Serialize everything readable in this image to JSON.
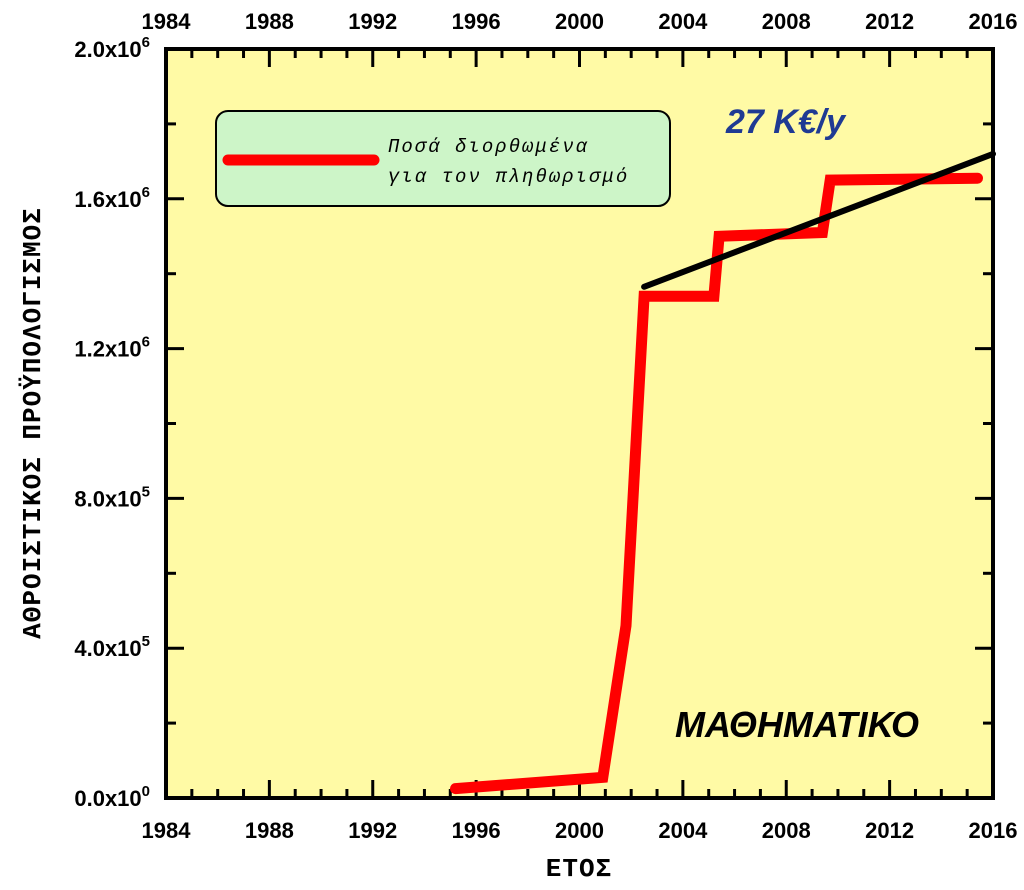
{
  "chart_data": {
    "type": "line",
    "xlabel": "ΕΤΟΣ",
    "ylabel": "ΑΘΡΟΙΣΤΙΚΟΣ ΠΡΟΫΠΟΛΟΓΙΣΜΟΣ",
    "xlim": [
      1984,
      2016
    ],
    "ylim": [
      0,
      2000000
    ],
    "x_ticks": [
      "1984",
      "1988",
      "1992",
      "1996",
      "2000",
      "2004",
      "2008",
      "2012",
      "2016"
    ],
    "y_ticks": [
      {
        "value": 0,
        "base": "0.0x10",
        "exp": "0"
      },
      {
        "value": 400000,
        "base": "4.0x10",
        "exp": "5"
      },
      {
        "value": 800000,
        "base": "8.0x10",
        "exp": "5"
      },
      {
        "value": 1200000,
        "base": "1.2x10",
        "exp": "6"
      },
      {
        "value": 1600000,
        "base": "1.6x10",
        "exp": "6"
      },
      {
        "value": 2000000,
        "base": "2.0x10",
        "exp": "6"
      }
    ],
    "grid": false,
    "background": "#fffaa5",
    "series": [
      {
        "name": "Ποσά διορθωμένα για τον πληθωρισμό",
        "color": "#ff0000",
        "points": [
          [
            1995.2,
            25000
          ],
          [
            2000.9,
            55000
          ],
          [
            2001.8,
            460000
          ],
          [
            2002.5,
            1340000
          ],
          [
            2005.2,
            1340000
          ],
          [
            2005.4,
            1500000
          ],
          [
            2009.4,
            1510000
          ],
          [
            2009.7,
            1650000
          ],
          [
            2015.4,
            1655000
          ]
        ]
      },
      {
        "name": "",
        "color": "#000000",
        "points": [
          [
            2002.5,
            1365000
          ],
          [
            2016,
            1720000
          ]
        ]
      }
    ],
    "legend": {
      "position": "top-left",
      "lines": [
        "Ποσά διορθωμένα",
        "για τον πληθωρισμό"
      ],
      "background": "#cdf5c8"
    },
    "annotations": {
      "rate": "27 K€/y",
      "label": "ΜΑΘΗΜΑΤΙΚΟ"
    }
  }
}
